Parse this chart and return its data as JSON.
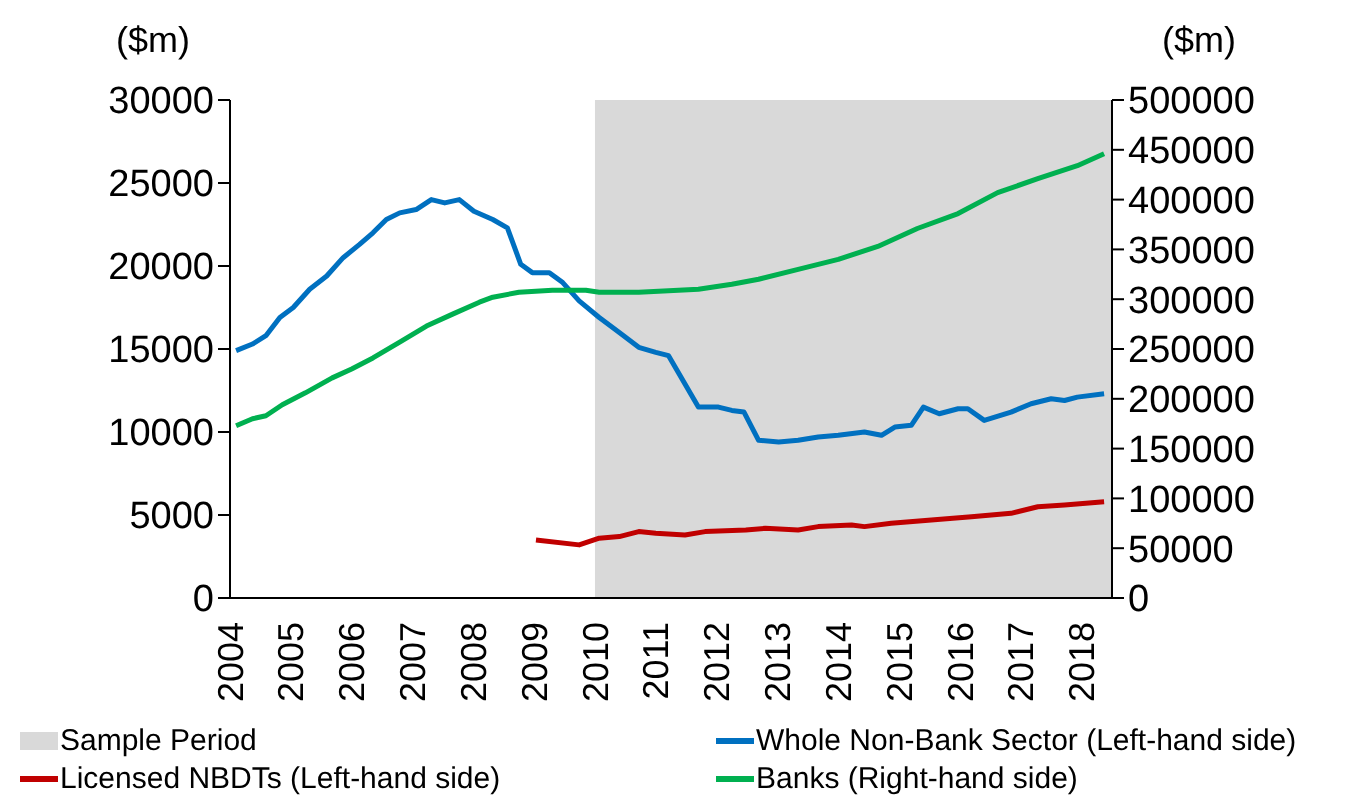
{
  "chart_data": {
    "type": "line",
    "ylabel": "($m)",
    "y2label": "($m)",
    "legend": "bottom",
    "grid": false,
    "marker": "none",
    "line_style": "solid",
    "xlim": [
      2004,
      2018.5
    ],
    "xticks": [
      2004,
      2005,
      2006,
      2007,
      2008,
      2009,
      2010,
      2011,
      2012,
      2013,
      2014,
      2015,
      2016,
      2017,
      2018
    ],
    "ylim": [
      0,
      30000
    ],
    "yticks": [
      0,
      5000,
      10000,
      15000,
      20000,
      25000,
      30000
    ],
    "y2lim": [
      0,
      500000
    ],
    "y2ticks": [
      0,
      50000,
      100000,
      150000,
      200000,
      250000,
      300000,
      350000,
      400000,
      450000,
      500000
    ],
    "bands": [
      {
        "axis": "x",
        "from": 2010,
        "to": 2018.5,
        "label": "Sample Period",
        "color": "#d9d9d9"
      }
    ],
    "series": [
      {
        "name": "Whole Non-Bank Sector (Left-hand side)",
        "color": "#0070c0",
        "x": [
          2004.1,
          2004.37,
          2004.59,
          2004.82,
          2005.04,
          2005.31,
          2005.59,
          2005.86,
          2006.13,
          2006.35,
          2006.57,
          2006.79,
          2007.06,
          2007.31,
          2007.53,
          2007.77,
          2008.01,
          2008.32,
          2008.56,
          2008.78,
          2008.97,
          2009.25,
          2009.47,
          2009.74,
          2010.07,
          2010.4,
          2010.72,
          2011.0,
          2011.21,
          2011.7,
          2012.03,
          2012.25,
          2012.45,
          2012.69,
          2013.02,
          2013.34,
          2013.67,
          2014.0,
          2014.43,
          2014.71,
          2014.93,
          2015.2,
          2015.4,
          2015.66,
          2015.97,
          2016.13,
          2016.4,
          2016.84,
          2017.17,
          2017.5,
          2017.72,
          2017.93,
          2018.37
        ],
        "values": [
          14900,
          15300,
          15800,
          16900,
          17500,
          18600,
          19400,
          20500,
          21300,
          22000,
          22800,
          23200,
          23400,
          24000,
          23800,
          24000,
          23300,
          22800,
          22300,
          20100,
          19600,
          19600,
          19000,
          17900,
          16900,
          16000,
          15100,
          14800,
          14600,
          11500,
          11500,
          11300,
          11200,
          9500,
          9400,
          9500,
          9700,
          9800,
          10000,
          9800,
          10300,
          10400,
          11500,
          11100,
          11400,
          11400,
          10700,
          11200,
          11700,
          12000,
          11900,
          12100,
          12300
        ]
      },
      {
        "name": "Licensed NBDTs (Left-hand side)",
        "color": "#c00000",
        "x": [
          2009.03,
          2009.74,
          2010.07,
          2010.4,
          2010.72,
          2011.0,
          2011.48,
          2011.81,
          2012.48,
          2012.8,
          2013.34,
          2013.67,
          2014.22,
          2014.43,
          2014.87,
          2015.53,
          2016.19,
          2016.84,
          2017.28,
          2017.72,
          2018.37
        ],
        "values": [
          3500,
          3200,
          3600,
          3700,
          4000,
          3900,
          3800,
          4000,
          4100,
          4200,
          4100,
          4300,
          4400,
          4300,
          4500,
          4700,
          4900,
          5100,
          5500,
          5600,
          5800
        ]
      },
      {
        "name": "Banks (Right-hand side)",
        "color": "#00b050",
        "axis": "y2",
        "x": [
          2004.1,
          2004.37,
          2004.59,
          2004.86,
          2005.24,
          2005.68,
          2006.0,
          2006.35,
          2006.79,
          2007.23,
          2007.66,
          2008.1,
          2008.32,
          2008.75,
          2009.3,
          2009.85,
          2010.07,
          2010.72,
          2011.7,
          2012.25,
          2012.69,
          2013.34,
          2014.0,
          2014.65,
          2015.3,
          2015.97,
          2016.62,
          2017.28,
          2017.93,
          2018.37
        ],
        "values": [
          173000,
          180000,
          183000,
          194000,
          206000,
          221000,
          230000,
          241000,
          257000,
          273000,
          285000,
          297000,
          302000,
          307000,
          309000,
          309000,
          307000,
          307000,
          310000,
          315000,
          320000,
          330000,
          340000,
          353000,
          371000,
          386000,
          407000,
          421000,
          434000,
          446000
        ]
      }
    ]
  }
}
